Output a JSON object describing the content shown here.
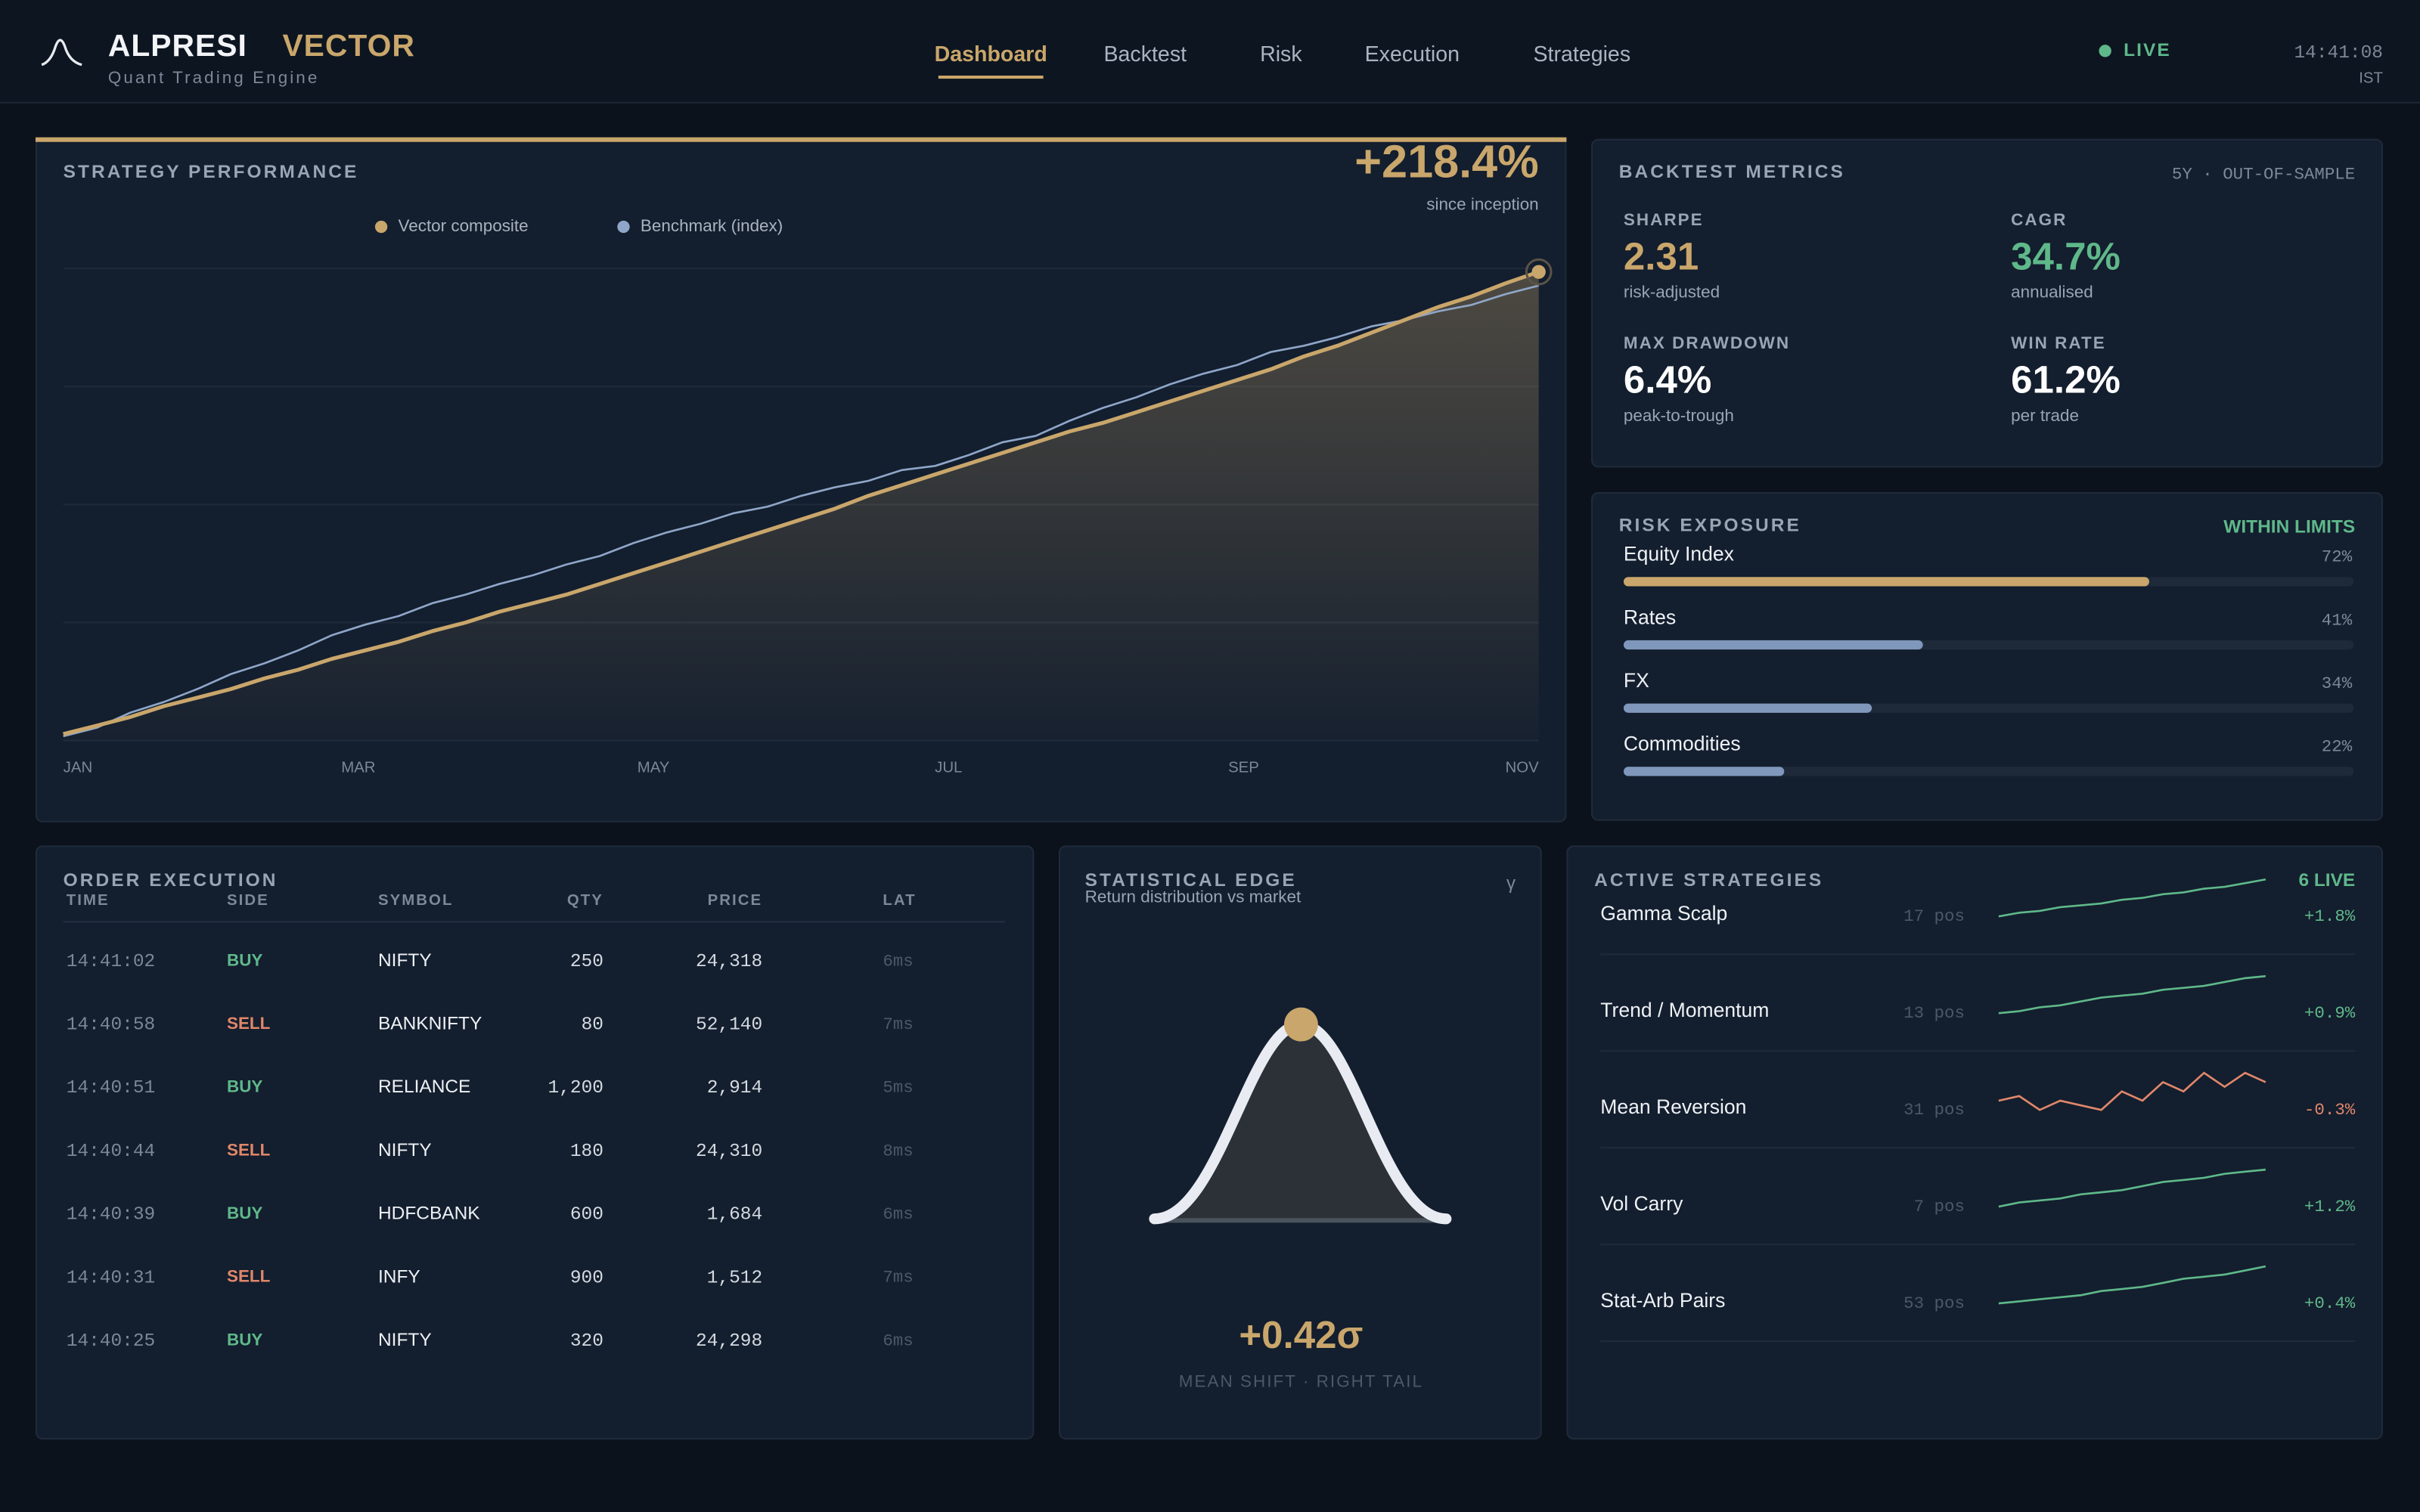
{
  "header": {
    "brand": "ALPRESI",
    "product": "VECTOR",
    "tagline": "Quant Trading Engine",
    "nav": [
      "Dashboard",
      "Backtest",
      "Risk",
      "Execution",
      "Strategies"
    ],
    "status": "LIVE",
    "time": "14:41:08",
    "timezone": "IST"
  },
  "performance": {
    "title": "STRATEGY PERFORMANCE",
    "headline": "+218.4%",
    "headline_note": "since inception",
    "chart": {
      "type": "line",
      "x_labels": [
        "JAN",
        "MAR",
        "MAY",
        "JUL",
        "SEP",
        "NOV"
      ],
      "ylim": [
        0,
        220
      ],
      "yticks": [
        0,
        55,
        110,
        165,
        220
      ],
      "grid": true,
      "series": [
        {
          "name": "Vector composite",
          "color": "#c9a66b",
          "values": [
            3,
            7,
            11,
            16,
            20,
            24,
            29,
            33,
            38,
            42,
            46,
            51,
            55,
            60,
            64,
            68,
            73,
            78,
            83,
            88,
            93,
            98,
            103,
            108,
            114,
            119,
            124,
            129,
            134,
            139,
            144,
            148,
            153,
            158,
            163,
            168,
            173,
            179,
            184,
            190,
            196,
            202,
            207,
            213,
            218.4
          ]
        },
        {
          "name": "Benchmark (index)",
          "color": "#8fa6c8",
          "values": [
            2,
            6,
            13,
            18,
            24,
            31,
            36,
            42,
            49,
            54,
            58,
            64,
            68,
            73,
            77,
            82,
            86,
            92,
            97,
            101,
            106,
            109,
            114,
            118,
            121,
            126,
            128,
            133,
            139,
            142,
            149,
            155,
            160,
            166,
            171,
            175,
            181,
            184,
            188,
            193,
            196,
            200,
            203,
            208,
            212
          ]
        }
      ]
    }
  },
  "metrics": {
    "title": "BACKTEST METRICS",
    "window": "5Y · OUT-OF-SAMPLE",
    "items": [
      {
        "label": "SHARPE",
        "value": "2.31",
        "note": "risk-adjusted",
        "color": "#c9a66b"
      },
      {
        "label": "CAGR",
        "value": "34.7%",
        "note": "annualised",
        "color": "#5fb88a"
      },
      {
        "label": "MAX DRAWDOWN",
        "value": "6.4%",
        "note": "peak-to-trough",
        "color": "#ffffff"
      },
      {
        "label": "WIN RATE",
        "value": "61.2%",
        "note": "per trade",
        "color": "#ffffff"
      }
    ]
  },
  "risk": {
    "title": "RISK EXPOSURE",
    "status": "WITHIN LIMITS",
    "xlim": [
      0,
      100
    ],
    "items": [
      {
        "name": "Equity Index",
        "value": 72,
        "value_label": "72%",
        "color": "#c9a66b"
      },
      {
        "name": "Rates",
        "value": 41,
        "value_label": "41%",
        "color": "#7f97ba"
      },
      {
        "name": "FX",
        "value": 34,
        "value_label": "34%",
        "color": "#7f97ba"
      },
      {
        "name": "Commodities",
        "value": 22,
        "value_label": "22%",
        "color": "#7f97ba"
      }
    ]
  },
  "orders": {
    "title": "ORDER EXECUTION",
    "columns": [
      "TIME",
      "SIDE",
      "SYMBOL",
      "QTY",
      "PRICE",
      "LAT"
    ],
    "rows": [
      {
        "time": "14:41:02",
        "side": "BUY",
        "symbol": "NIFTY",
        "qty": "250",
        "price": "24,318",
        "latency": "6ms",
        "side_color": "#5fb88a"
      },
      {
        "time": "14:40:58",
        "side": "SELL",
        "symbol": "BANKNIFTY",
        "qty": "80",
        "price": "52,140",
        "latency": "7ms",
        "side_color": "#e0876a"
      },
      {
        "time": "14:40:51",
        "side": "BUY",
        "symbol": "RELIANCE",
        "qty": "1,200",
        "price": "2,914",
        "latency": "5ms",
        "side_color": "#5fb88a"
      },
      {
        "time": "14:40:44",
        "side": "SELL",
        "symbol": "NIFTY",
        "qty": "180",
        "price": "24,310",
        "latency": "8ms",
        "side_color": "#e0876a"
      },
      {
        "time": "14:40:39",
        "side": "BUY",
        "symbol": "HDFCBANK",
        "qty": "600",
        "price": "1,684",
        "latency": "6ms",
        "side_color": "#5fb88a"
      },
      {
        "time": "14:40:31",
        "side": "SELL",
        "symbol": "INFY",
        "qty": "900",
        "price": "1,512",
        "latency": "7ms",
        "side_color": "#e0876a"
      },
      {
        "time": "14:40:25",
        "side": "BUY",
        "symbol": "NIFTY",
        "qty": "320",
        "price": "24,298",
        "latency": "6ms",
        "side_color": "#5fb88a"
      }
    ]
  },
  "edge": {
    "title": "STATISTICAL EDGE",
    "subtitle": "Return distribution vs market",
    "symbol": "γ",
    "value": "+0.42σ",
    "caption": "MEAN SHIFT · RIGHT TAIL"
  },
  "strategies": {
    "title": "ACTIVE STRATEGIES",
    "status": "6 LIVE",
    "items": [
      {
        "name": "Gamma Scalp",
        "positions": "17 pos",
        "change": "+1.8%",
        "color": "#5fb88a",
        "spark": [
          0,
          1,
          1.5,
          2.5,
          3,
          3.5,
          4.5,
          5,
          6,
          6.5,
          7.5,
          8,
          9,
          10
        ]
      },
      {
        "name": "Trend / Momentum",
        "positions": "13 pos",
        "change": "+0.9%",
        "color": "#5fb88a",
        "spark": [
          0,
          0.5,
          1.5,
          2,
          3,
          4,
          4.5,
          5,
          6,
          6.5,
          7,
          8,
          9,
          9.5
        ]
      },
      {
        "name": "Mean Reversion",
        "positions": "31 pos",
        "change": "-0.3%",
        "color": "#e0876a",
        "spark": [
          3,
          3.5,
          2,
          3,
          2.5,
          2,
          4,
          3,
          5,
          4,
          6,
          4.5,
          6,
          5
        ]
      },
      {
        "name": "Vol Carry",
        "positions": "7 pos",
        "change": "+1.2%",
        "color": "#5fb88a",
        "spark": [
          0,
          1,
          1.5,
          2,
          3,
          3.5,
          4,
          5,
          6,
          6.5,
          7,
          8,
          8.5,
          9
        ]
      },
      {
        "name": "Stat-Arb Pairs",
        "positions": "53 pos",
        "change": "+0.4%",
        "color": "#5fb88a",
        "spark": [
          0,
          0.5,
          1,
          1.5,
          2,
          3,
          3.5,
          4,
          5,
          6,
          6.5,
          7,
          8,
          9
        ]
      }
    ]
  }
}
